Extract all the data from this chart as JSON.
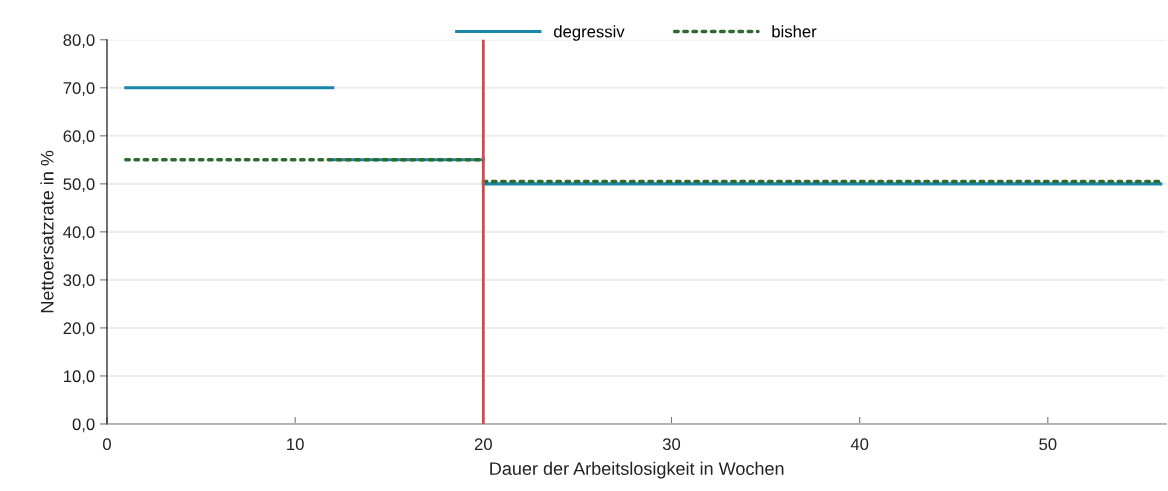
{
  "chart_data": {
    "type": "line",
    "xlabel": "Dauer der Arbeitslosigkeit in Wochen",
    "ylabel": "Nettoersatzrate in %",
    "series": [
      {
        "name": "degressiv",
        "color": "#1a86a8",
        "line_style": "solid",
        "x": [
          1,
          12,
          null,
          12,
          20,
          null,
          20,
          56
        ],
        "values": [
          70,
          70,
          null,
          55,
          55,
          null,
          50,
          50
        ]
      },
      {
        "name": "bisher",
        "color": "#2e6b30",
        "line_style": "dotted",
        "x": [
          1,
          20,
          null,
          20,
          56
        ],
        "values": [
          55,
          55,
          null,
          50.5,
          50.5
        ]
      }
    ],
    "xlim": [
      0,
      56.3
    ],
    "xticks": [
      0,
      10,
      20,
      30,
      40,
      50
    ],
    "ylim": [
      0,
      80
    ],
    "yticks": [
      {
        "value": 0,
        "label": "0,0"
      },
      {
        "value": 10,
        "label": "10,0"
      },
      {
        "value": 20,
        "label": "20,0"
      },
      {
        "value": 30,
        "label": "30,0"
      },
      {
        "value": 40,
        "label": "40,0"
      },
      {
        "value": 50,
        "label": "50,0"
      },
      {
        "value": 60,
        "label": "60,0"
      },
      {
        "value": 70,
        "label": "70,0"
      },
      {
        "value": 80,
        "label": "80,0"
      }
    ],
    "ref_lines": [
      {
        "axis": "x",
        "value": 20,
        "color": "#d04a4a",
        "line_style": "solid"
      }
    ],
    "grid": "y",
    "legend": "top"
  }
}
